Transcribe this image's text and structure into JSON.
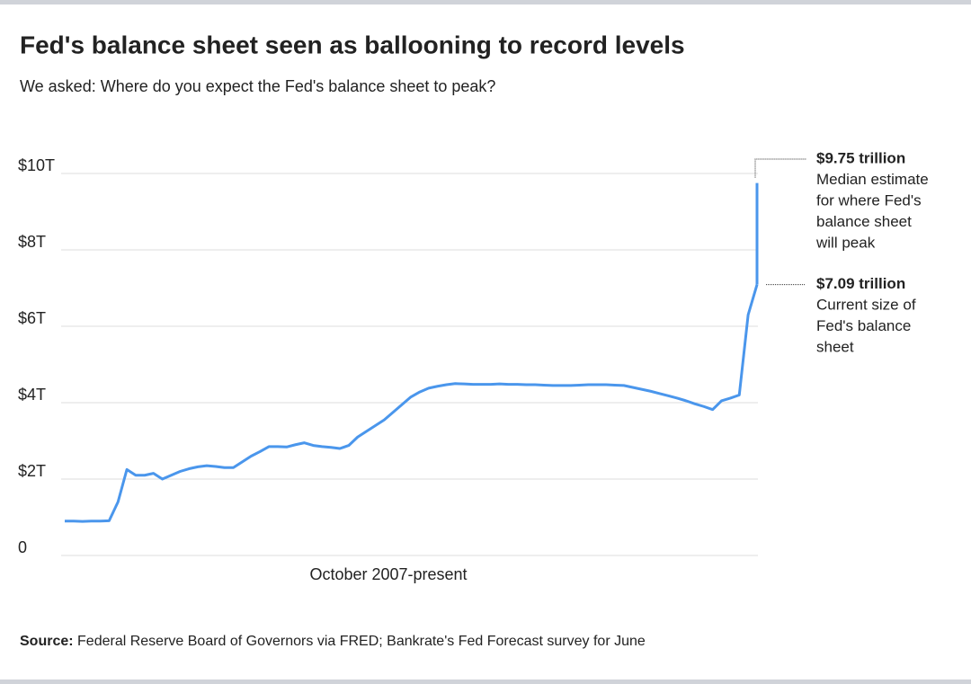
{
  "chart_data": {
    "type": "line",
    "title": "Fed's balance sheet seen as ballooning to record levels",
    "subtitle": "We asked: Where do you expect the Fed's balance sheet to peak?",
    "x_label": "October 2007-present",
    "series": [
      {
        "name": "Fed balance sheet",
        "color": "#4a96ec",
        "values": [
          0.9,
          0.9,
          0.89,
          0.9,
          0.9,
          0.91,
          1.4,
          2.25,
          2.1,
          2.1,
          2.15,
          2.0,
          2.1,
          2.2,
          2.27,
          2.32,
          2.35,
          2.33,
          2.3,
          2.3,
          2.45,
          2.6,
          2.72,
          2.85,
          2.85,
          2.84,
          2.9,
          2.95,
          2.88,
          2.85,
          2.83,
          2.8,
          2.88,
          3.1,
          3.25,
          3.4,
          3.55,
          3.75,
          3.95,
          4.15,
          4.28,
          4.38,
          4.43,
          4.47,
          4.5,
          4.49,
          4.48,
          4.48,
          4.48,
          4.49,
          4.48,
          4.48,
          4.47,
          4.47,
          4.46,
          4.45,
          4.45,
          4.45,
          4.46,
          4.47,
          4.47,
          4.47,
          4.46,
          4.45,
          4.4,
          4.35,
          4.3,
          4.24,
          4.18,
          4.12,
          4.05,
          3.97,
          3.9,
          3.82,
          4.05,
          4.12,
          4.2,
          6.3,
          7.09
        ]
      }
    ],
    "ylim": [
      0,
      10
    ],
    "yticks": [
      0,
      {
        "value": 2,
        "label": "$2T"
      },
      {
        "value": 4,
        "label": "$4T"
      },
      {
        "value": 6,
        "label": "$6T"
      },
      {
        "value": 8,
        "label": "$8T"
      },
      {
        "value": 10,
        "label": "$10T"
      }
    ],
    "grid": true,
    "annotations": [
      {
        "value": 9.75,
        "label": "$9.75 trillion",
        "text": [
          "Median estimate",
          "for where Fed's",
          "balance sheet",
          "will peak"
        ]
      },
      {
        "value": 7.09,
        "label": "$7.09 trillion",
        "text": [
          "Current size of",
          "Fed's balance",
          "sheet"
        ]
      }
    ],
    "source_label": "Source:",
    "source": "Federal Reserve Board of Governors via FRED; Bankrate's Fed Forecast survey for June"
  }
}
